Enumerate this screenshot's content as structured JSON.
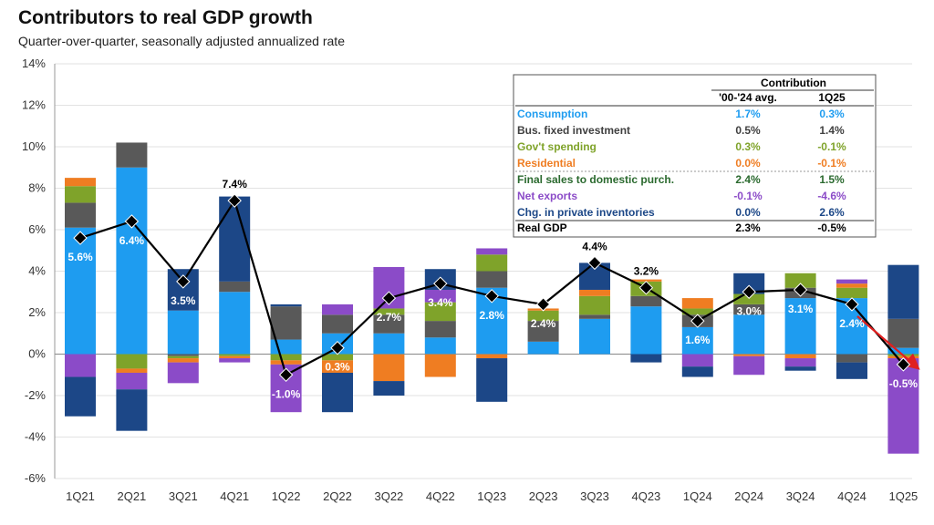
{
  "header": {
    "title": "Contributors to real GDP growth",
    "subtitle": "Quarter-over-quarter, seasonally adjusted annualized rate"
  },
  "colors": {
    "consumption": "#1e9cf0",
    "business_investment": "#595959",
    "government": "#7fa32a",
    "residential": "#ef7d22",
    "net_exports": "#8b4bc8",
    "inventories": "#1c4787",
    "line": "#000000",
    "arrow": "#e02020"
  },
  "legend": {
    "header": "Contribution",
    "col1": "'00-'24 avg.",
    "col2": "1Q25",
    "rows": [
      {
        "label": "Consumption",
        "avg": "1.7%",
        "last": "0.3%",
        "color": "#1e9cf0"
      },
      {
        "label": "Bus. fixed investment",
        "avg": "0.5%",
        "last": "1.4%",
        "color": "#404040"
      },
      {
        "label": "Gov't spending",
        "avg": "0.3%",
        "last": "-0.1%",
        "color": "#7fa32a"
      },
      {
        "label": "Residential",
        "avg": "0.0%",
        "last": "-0.1%",
        "color": "#ef7d22"
      },
      {
        "label": "Final sales to domestic purch.",
        "avg": "2.4%",
        "last": "1.5%",
        "color": "#2b6a2f"
      },
      {
        "label": "Net exports",
        "avg": "-0.1%",
        "last": "-4.6%",
        "color": "#8b4bc8"
      },
      {
        "label": "Chg. in private inventories",
        "avg": "0.0%",
        "last": "2.6%",
        "color": "#1c4787"
      },
      {
        "label": "Real GDP",
        "avg": "2.3%",
        "last": "-0.5%",
        "color": "#000000"
      }
    ]
  },
  "chart_data": {
    "type": "bar",
    "stacked": true,
    "title": "Contributors to real GDP growth",
    "subtitle": "Quarter-over-quarter, seasonally adjusted annualized rate",
    "categories": [
      "1Q21",
      "2Q21",
      "3Q21",
      "4Q21",
      "1Q22",
      "2Q22",
      "3Q22",
      "4Q22",
      "1Q23",
      "2Q23",
      "3Q23",
      "4Q23",
      "1Q24",
      "2Q24",
      "3Q24",
      "4Q24",
      "1Q25"
    ],
    "ylim": [
      -6,
      14
    ],
    "yticks": [
      -6,
      -4,
      -2,
      0,
      2,
      4,
      6,
      8,
      10,
      12,
      14
    ],
    "ytick_labels": [
      "-6%",
      "-4%",
      "-2%",
      "0%",
      "2%",
      "4%",
      "6%",
      "8%",
      "10%",
      "12%",
      "14%"
    ],
    "series": [
      {
        "name": "Consumption",
        "key": "consumption",
        "values": [
          6.1,
          9.0,
          2.1,
          3.0,
          0.7,
          1.0,
          1.0,
          0.8,
          3.2,
          0.6,
          1.7,
          2.3,
          1.3,
          1.9,
          2.7,
          2.7,
          0.3
        ]
      },
      {
        "name": "Bus. fixed investment",
        "key": "business_investment",
        "values": [
          1.2,
          1.2,
          -0.1,
          0.5,
          1.6,
          0.9,
          0.9,
          0.8,
          0.8,
          1.0,
          0.2,
          0.5,
          0.6,
          0.5,
          0.5,
          -0.4,
          1.4
        ]
      },
      {
        "name": "Gov't spending",
        "key": "government",
        "values": [
          0.8,
          -0.7,
          -0.1,
          -0.1,
          -0.3,
          -0.3,
          0.3,
          0.9,
          0.8,
          0.5,
          0.9,
          0.7,
          0.3,
          0.5,
          0.7,
          0.5,
          -0.1
        ]
      },
      {
        "name": "Residential",
        "key": "residential",
        "values": [
          0.4,
          -0.2,
          -0.2,
          -0.1,
          -0.2,
          -0.6,
          -1.3,
          -1.1,
          -0.2,
          0.1,
          0.3,
          0.1,
          0.5,
          -0.1,
          -0.2,
          0.2,
          -0.1
        ]
      },
      {
        "name": "Net exports",
        "key": "net_exports",
        "values": [
          -1.1,
          -0.8,
          -1.0,
          -0.2,
          -2.3,
          0.5,
          2.0,
          0.6,
          0.3,
          0.0,
          0.0,
          0.0,
          -0.6,
          -0.9,
          -0.4,
          0.2,
          -4.6
        ]
      },
      {
        "name": "Chg. in private inventories",
        "key": "inventories",
        "values": [
          -1.9,
          -2.0,
          2.0,
          4.1,
          0.1,
          -1.9,
          -0.7,
          1.0,
          -2.1,
          0.0,
          1.3,
          -0.4,
          -0.5,
          1.0,
          -0.2,
          -0.8,
          2.6
        ]
      }
    ],
    "line": {
      "name": "Real GDP",
      "values": [
        5.6,
        6.4,
        3.5,
        7.4,
        -1.0,
        0.3,
        2.7,
        3.4,
        2.8,
        2.4,
        4.4,
        3.2,
        1.6,
        3.0,
        3.1,
        2.4,
        -0.5
      ],
      "labels": [
        "5.6%",
        "6.4%",
        "3.5%",
        "7.4%",
        "-1.0%",
        "0.3%",
        "2.7%",
        "3.4%",
        "2.8%",
        "2.4%",
        "4.4%",
        "3.2%",
        "1.6%",
        "3.0%",
        "3.1%",
        "2.4%",
        "-0.5%"
      ],
      "label_colors": [
        "#ffffff",
        "#ffffff",
        "#ffffff",
        "#000000",
        "#ffffff",
        "#ffffff",
        "#ffffff",
        "#ffffff",
        "#ffffff",
        "#ffffff",
        "#000000",
        "#000000",
        "#ffffff",
        "#ffffff",
        "#ffffff",
        "#ffffff",
        "#ffffff"
      ]
    },
    "annotations": [
      "Red arrow indicating decline into 1Q25"
    ]
  }
}
